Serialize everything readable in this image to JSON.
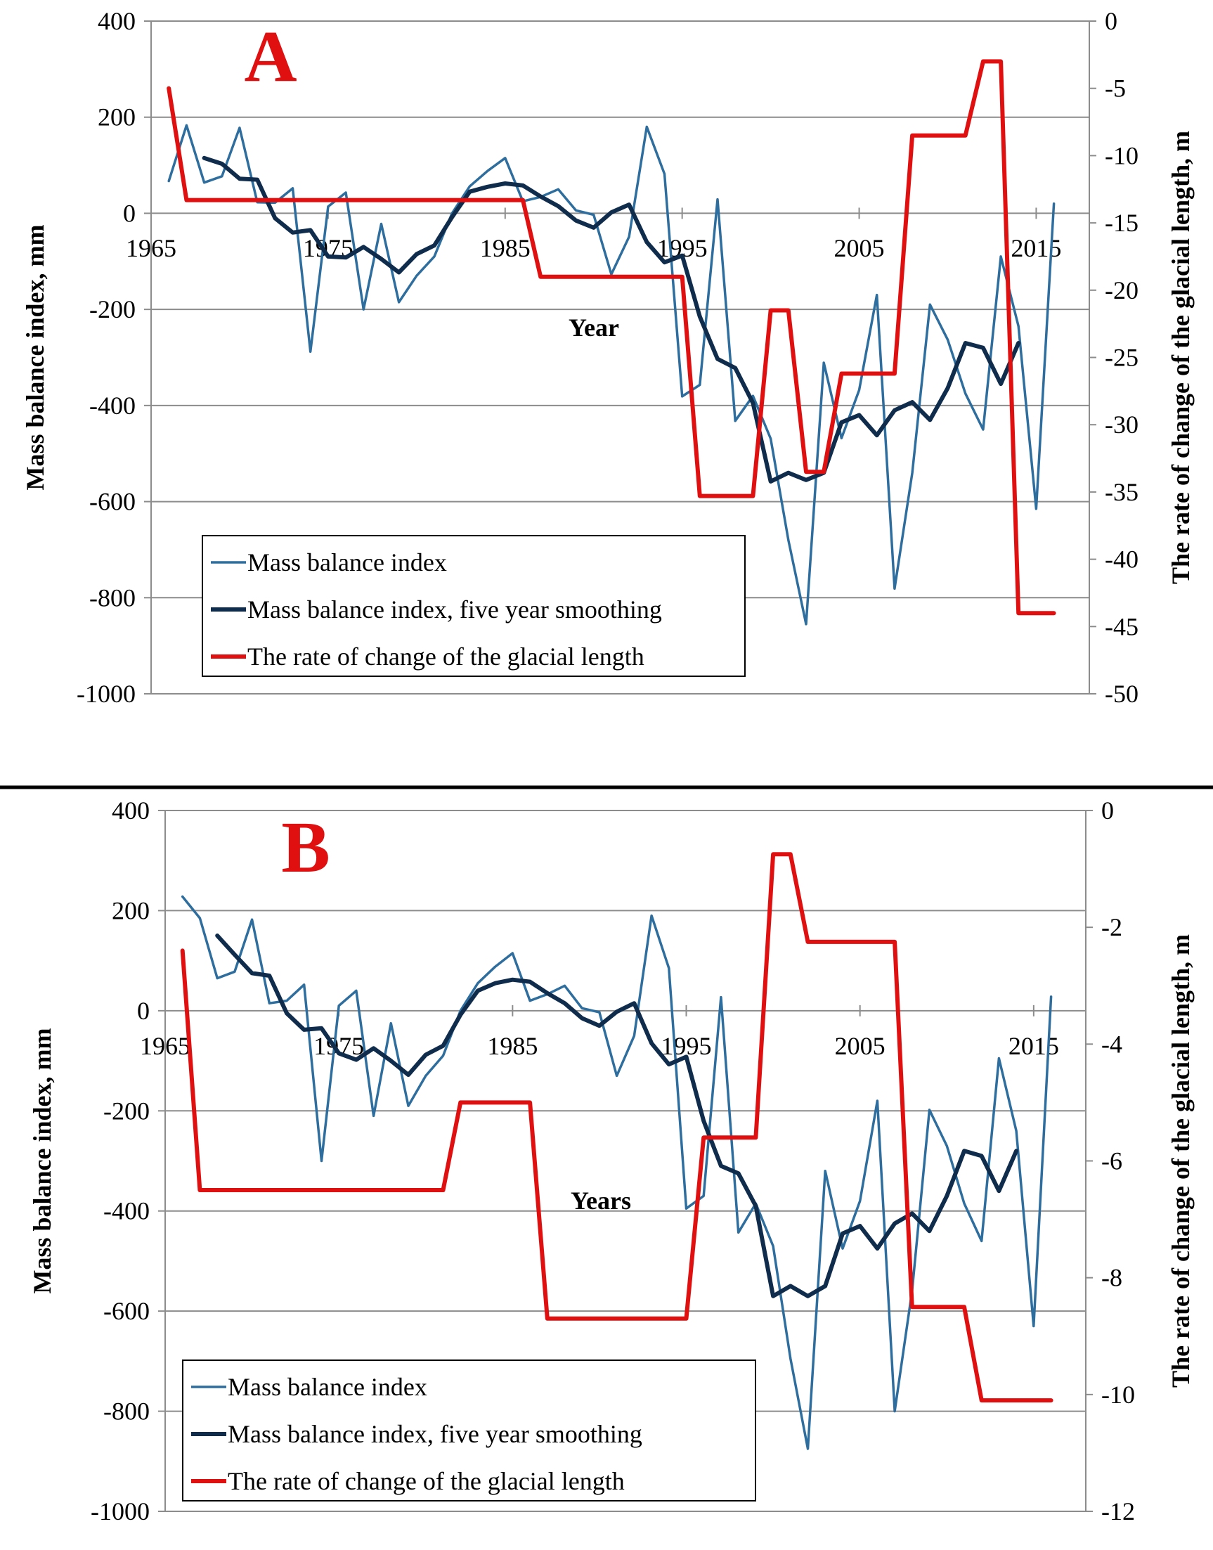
{
  "colors": {
    "mbi": "#2e6e9e",
    "smooth": "#0f2c4c",
    "rate": "#e01010",
    "panel_letter": "#e01010",
    "grid": "#8c8c8c",
    "text": "#000000"
  },
  "chart_data": [
    {
      "type": "line",
      "panel": "A",
      "xlabel": "Year",
      "ylabel": "Mass balance index, mm",
      "y2label": "The rate of change of the glacial length, m",
      "xlim": [
        1965,
        2018
      ],
      "ylim": [
        -1000,
        400
      ],
      "y2lim": [
        -50,
        0
      ],
      "xticks": [
        1965,
        1975,
        1985,
        1995,
        2005,
        2015
      ],
      "yticks": [
        400,
        200,
        0,
        -200,
        -400,
        -600,
        -800,
        -1000
      ],
      "y2ticks": [
        0,
        -5,
        -10,
        -15,
        -20,
        -25,
        -30,
        -35,
        -40,
        -45,
        -50
      ],
      "legend": [
        "Mass balance index",
        "Mass balance index, five year smoothing",
        "The rate of change of the glacial length"
      ],
      "series": [
        {
          "name": "Mass balance index",
          "axis": "left",
          "points": [
            [
              1966,
              67
            ],
            [
              1967,
              183
            ],
            [
              1968,
              64
            ],
            [
              1969,
              77
            ],
            [
              1970,
              178
            ],
            [
              1971,
              23
            ],
            [
              1972,
              22
            ],
            [
              1973,
              52
            ],
            [
              1974,
              -288
            ],
            [
              1975,
              14
            ],
            [
              1976,
              43
            ],
            [
              1977,
              -200
            ],
            [
              1978,
              -22
            ],
            [
              1979,
              -185
            ],
            [
              1980,
              -130
            ],
            [
              1981,
              -90
            ],
            [
              1982,
              0
            ],
            [
              1983,
              56
            ],
            [
              1984,
              88
            ],
            [
              1985,
              115
            ],
            [
              1986,
              25
            ],
            [
              1987,
              34
            ],
            [
              1988,
              50
            ],
            [
              1989,
              6
            ],
            [
              1990,
              -3
            ],
            [
              1991,
              -127
            ],
            [
              1992,
              -49
            ],
            [
              1993,
              180
            ],
            [
              1994,
              82
            ],
            [
              1995,
              -381
            ],
            [
              1996,
              -357
            ],
            [
              1997,
              29
            ],
            [
              1998,
              -432
            ],
            [
              1999,
              -380
            ],
            [
              2000,
              -469
            ],
            [
              2001,
              -680
            ],
            [
              2002,
              -855
            ],
            [
              2003,
              -311
            ],
            [
              2004,
              -468
            ],
            [
              2005,
              -368
            ],
            [
              2006,
              -170
            ],
            [
              2007,
              -781
            ],
            [
              2008,
              -540
            ],
            [
              2009,
              -190
            ],
            [
              2010,
              -263
            ],
            [
              2011,
              -375
            ],
            [
              2012,
              -450
            ],
            [
              2013,
              -90
            ],
            [
              2014,
              -235
            ],
            [
              2015,
              -615
            ],
            [
              2016,
              20
            ]
          ]
        },
        {
          "name": "Mass balance index, five year smoothing",
          "axis": "left",
          "points": [
            [
              1968,
              115
            ],
            [
              1969,
              103
            ],
            [
              1970,
              72
            ],
            [
              1971,
              70
            ],
            [
              1972,
              -10
            ],
            [
              1973,
              -40
            ],
            [
              1974,
              -35
            ],
            [
              1975,
              -90
            ],
            [
              1976,
              -92
            ],
            [
              1977,
              -70
            ],
            [
              1978,
              -95
            ],
            [
              1979,
              -123
            ],
            [
              1980,
              -85
            ],
            [
              1981,
              -67
            ],
            [
              1982,
              -8
            ],
            [
              1983,
              45
            ],
            [
              1984,
              55
            ],
            [
              1985,
              62
            ],
            [
              1986,
              58
            ],
            [
              1987,
              35
            ],
            [
              1988,
              15
            ],
            [
              1989,
              -15
            ],
            [
              1990,
              -30
            ],
            [
              1991,
              2
            ],
            [
              1992,
              18
            ],
            [
              1993,
              -60
            ],
            [
              1994,
              -102
            ],
            [
              1995,
              -88
            ],
            [
              1996,
              -215
            ],
            [
              1997,
              -303
            ],
            [
              1998,
              -322
            ],
            [
              1999,
              -395
            ],
            [
              2000,
              -558
            ],
            [
              2001,
              -540
            ],
            [
              2002,
              -555
            ],
            [
              2003,
              -540
            ],
            [
              2004,
              -435
            ],
            [
              2005,
              -420
            ],
            [
              2006,
              -462
            ],
            [
              2007,
              -410
            ],
            [
              2008,
              -393
            ],
            [
              2009,
              -430
            ],
            [
              2010,
              -364
            ],
            [
              2011,
              -270
            ],
            [
              2012,
              -280
            ],
            [
              2013,
              -355
            ],
            [
              2014,
              -270
            ]
          ]
        },
        {
          "name": "The rate of change of the glacial length",
          "axis": "right",
          "points": [
            [
              1966,
              -5
            ],
            [
              1967,
              -13.3
            ],
            [
              1986,
              -13.3
            ],
            [
              1987,
              -19
            ],
            [
              1995,
              -19
            ],
            [
              1996,
              -35.3
            ],
            [
              1999,
              -35.3
            ],
            [
              2000,
              -21.5
            ],
            [
              2001,
              -21.5
            ],
            [
              2002,
              -33.5
            ],
            [
              2003,
              -33.5
            ],
            [
              2004,
              -26.2
            ],
            [
              2007,
              -26.2
            ],
            [
              2008,
              -8.5
            ],
            [
              2011,
              -8.5
            ],
            [
              2012,
              -3
            ],
            [
              2013,
              -3
            ],
            [
              2014,
              -44
            ],
            [
              2016,
              -44
            ]
          ]
        }
      ]
    },
    {
      "type": "line",
      "panel": "B",
      "xlabel": "Years",
      "ylabel": "Mass balance index, mm",
      "y2label": "The rate of change of the glacial length, m",
      "xlim": [
        1965,
        2018
      ],
      "ylim": [
        -1000,
        400
      ],
      "y2lim": [
        -12,
        0
      ],
      "xticks": [
        1965,
        1975,
        1985,
        1995,
        2005,
        2015
      ],
      "yticks": [
        400,
        200,
        0,
        -200,
        -400,
        -600,
        -800,
        -1000
      ],
      "y2ticks": [
        0,
        -2,
        -4,
        -6,
        -8,
        -10,
        -12
      ],
      "legend": [
        "Mass balance index",
        "Mass balance index, five year smoothing",
        "The rate of change of the glacial length"
      ],
      "series": [
        {
          "name": "Mass balance index",
          "axis": "left",
          "points": [
            [
              1966,
              228
            ],
            [
              1967,
              185
            ],
            [
              1968,
              65
            ],
            [
              1969,
              78
            ],
            [
              1970,
              182
            ],
            [
              1971,
              15
            ],
            [
              1972,
              20
            ],
            [
              1973,
              52
            ],
            [
              1974,
              -300
            ],
            [
              1975,
              10
            ],
            [
              1976,
              40
            ],
            [
              1977,
              -210
            ],
            [
              1978,
              -25
            ],
            [
              1979,
              -190
            ],
            [
              1980,
              -130
            ],
            [
              1981,
              -90
            ],
            [
              1982,
              0
            ],
            [
              1983,
              55
            ],
            [
              1984,
              88
            ],
            [
              1985,
              115
            ],
            [
              1986,
              20
            ],
            [
              1987,
              33
            ],
            [
              1988,
              50
            ],
            [
              1989,
              5
            ],
            [
              1990,
              -3
            ],
            [
              1991,
              -130
            ],
            [
              1992,
              -50
            ],
            [
              1993,
              190
            ],
            [
              1994,
              85
            ],
            [
              1995,
              -395
            ],
            [
              1996,
              -370
            ],
            [
              1997,
              27
            ],
            [
              1998,
              -443
            ],
            [
              1999,
              -385
            ],
            [
              2000,
              -470
            ],
            [
              2001,
              -695
            ],
            [
              2002,
              -875
            ],
            [
              2003,
              -320
            ],
            [
              2004,
              -475
            ],
            [
              2005,
              -380
            ],
            [
              2006,
              -180
            ],
            [
              2007,
              -800
            ],
            [
              2008,
              -560
            ],
            [
              2009,
              -198
            ],
            [
              2010,
              -270
            ],
            [
              2011,
              -385
            ],
            [
              2012,
              -460
            ],
            [
              2013,
              -95
            ],
            [
              2014,
              -240
            ],
            [
              2015,
              -630
            ],
            [
              2016,
              28
            ]
          ]
        },
        {
          "name": "Mass balance index, five year smoothing",
          "axis": "left",
          "points": [
            [
              1968,
              150
            ],
            [
              1969,
              112
            ],
            [
              1970,
              75
            ],
            [
              1971,
              70
            ],
            [
              1972,
              -5
            ],
            [
              1973,
              -38
            ],
            [
              1974,
              -35
            ],
            [
              1975,
              -85
            ],
            [
              1976,
              -98
            ],
            [
              1977,
              -75
            ],
            [
              1978,
              -100
            ],
            [
              1979,
              -128
            ],
            [
              1980,
              -88
            ],
            [
              1981,
              -70
            ],
            [
              1982,
              -8
            ],
            [
              1983,
              40
            ],
            [
              1984,
              55
            ],
            [
              1985,
              62
            ],
            [
              1986,
              58
            ],
            [
              1987,
              35
            ],
            [
              1988,
              15
            ],
            [
              1989,
              -15
            ],
            [
              1990,
              -30
            ],
            [
              1991,
              -2
            ],
            [
              1992,
              15
            ],
            [
              1993,
              -65
            ],
            [
              1994,
              -107
            ],
            [
              1995,
              -92
            ],
            [
              1996,
              -220
            ],
            [
              1997,
              -310
            ],
            [
              1998,
              -325
            ],
            [
              1999,
              -390
            ],
            [
              2000,
              -570
            ],
            [
              2001,
              -550
            ],
            [
              2002,
              -570
            ],
            [
              2003,
              -550
            ],
            [
              2004,
              -445
            ],
            [
              2005,
              -430
            ],
            [
              2006,
              -475
            ],
            [
              2007,
              -425
            ],
            [
              2008,
              -405
            ],
            [
              2009,
              -440
            ],
            [
              2010,
              -370
            ],
            [
              2011,
              -280
            ],
            [
              2012,
              -290
            ],
            [
              2013,
              -360
            ],
            [
              2014,
              -280
            ]
          ]
        },
        {
          "name": "The rate of change of the glacial length",
          "axis": "right",
          "points": [
            [
              1966,
              -2.4
            ],
            [
              1967,
              -6.5
            ],
            [
              1981,
              -6.5
            ],
            [
              1982,
              -5
            ],
            [
              1986,
              -5
            ],
            [
              1987,
              -8.7
            ],
            [
              1995,
              -8.7
            ],
            [
              1996,
              -5.6
            ],
            [
              1999,
              -5.6
            ],
            [
              2000,
              -0.75
            ],
            [
              2001,
              -0.75
            ],
            [
              2002,
              -2.25
            ],
            [
              2007,
              -2.25
            ],
            [
              2008,
              -8.5
            ],
            [
              2011,
              -8.5
            ],
            [
              2012,
              -10.1
            ],
            [
              2016,
              -10.1
            ]
          ]
        }
      ]
    }
  ]
}
